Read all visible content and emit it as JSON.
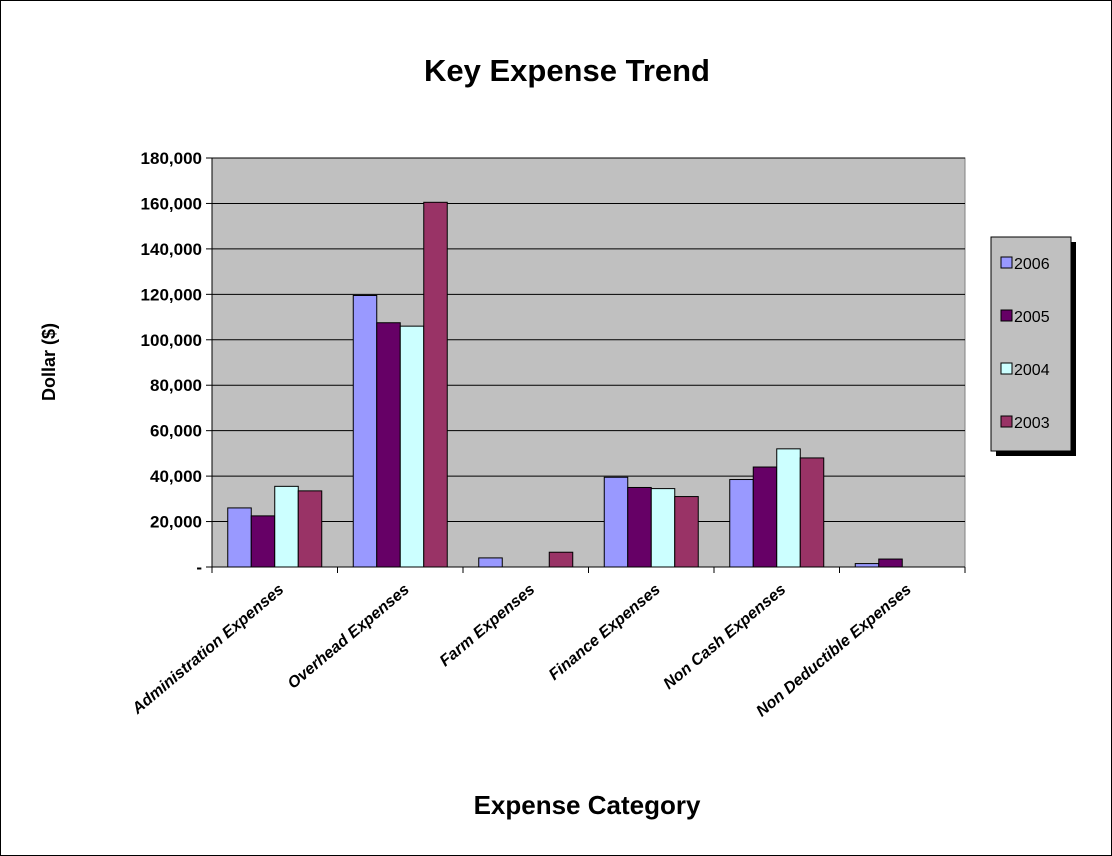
{
  "chart_data": {
    "type": "bar",
    "title": "Key Expense Trend",
    "xlabel": "Expense Category",
    "ylabel": "Dollar ($)",
    "categories": [
      "Administration Expenses",
      "Overhead Expenses",
      "Farm Expenses",
      "Finance Expenses",
      "Non Cash Expenses",
      "Non Deductible Expenses"
    ],
    "series": [
      {
        "name": "2006",
        "color": "#9999ff",
        "values": [
          26000,
          119500,
          4000,
          39500,
          38500,
          1500
        ]
      },
      {
        "name": "2005",
        "color": "#660066",
        "values": [
          22500,
          107500,
          0,
          35000,
          44000,
          3500
        ]
      },
      {
        "name": "2004",
        "color": "#ccffff",
        "values": [
          35500,
          106000,
          0,
          34500,
          52000,
          0
        ]
      },
      {
        "name": "2003",
        "color": "#993366",
        "values": [
          33500,
          160500,
          6500,
          31000,
          48000,
          0
        ]
      }
    ],
    "ylim": [
      0,
      180000
    ],
    "yticks": [
      0,
      20000,
      40000,
      60000,
      80000,
      100000,
      120000,
      140000,
      160000,
      180000
    ],
    "ytick_labels": [
      "-",
      "20,000",
      "40,000",
      "60,000",
      "80,000",
      "100,000",
      "120,000",
      "140,000",
      "160,000",
      "180,000"
    ],
    "grid": true,
    "plot_background": "#c0c0c0",
    "legend_position": "right"
  }
}
